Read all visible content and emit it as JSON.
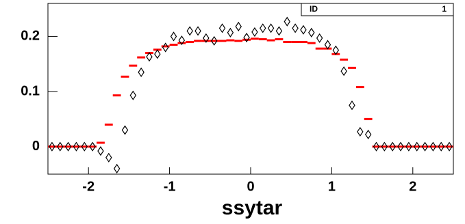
{
  "chart_data": {
    "type": "scatter",
    "xlabel": "ssytar",
    "stats_label": "ID",
    "stats_value": "1",
    "xlim": [
      -2.5,
      2.5
    ],
    "ylim": [
      -0.05,
      0.26
    ],
    "xticks": [
      -2,
      -1,
      0,
      1,
      2
    ],
    "yticks": [
      0,
      0.1,
      0.2
    ],
    "x": [
      -2.45,
      -2.35,
      -2.25,
      -2.15,
      -2.05,
      -1.95,
      -1.85,
      -1.75,
      -1.65,
      -1.55,
      -1.45,
      -1.35,
      -1.25,
      -1.15,
      -1.05,
      -0.95,
      -0.85,
      -0.75,
      -0.65,
      -0.55,
      -0.45,
      -0.35,
      -0.25,
      -0.15,
      -0.05,
      0.05,
      0.15,
      0.25,
      0.35,
      0.45,
      0.55,
      0.65,
      0.75,
      0.85,
      0.95,
      1.05,
      1.15,
      1.25,
      1.35,
      1.45,
      1.55,
      1.65,
      1.75,
      1.85,
      1.95,
      2.05,
      2.15,
      2.25,
      2.35,
      2.45
    ],
    "series": [
      {
        "color": "#ff0000",
        "marker": "dash",
        "values": [
          0,
          0,
          0,
          0,
          0,
          0,
          0.007,
          0.04,
          0.093,
          0.127,
          0.147,
          0.162,
          0.17,
          0.176,
          0.182,
          0.185,
          0.188,
          0.19,
          0.192,
          0.192,
          0.192,
          0.192,
          0.193,
          0.192,
          0.194,
          0.196,
          0.195,
          0.193,
          0.195,
          0.19,
          0.19,
          0.19,
          0.188,
          0.178,
          0.178,
          0.168,
          0.158,
          0.143,
          0.108,
          0.05,
          0,
          0,
          0,
          0,
          0,
          0,
          0,
          0,
          0,
          0
        ]
      },
      {
        "color": "#000000",
        "marker": "diamond",
        "values": [
          0,
          0,
          0,
          0,
          0,
          0,
          -0.008,
          -0.02,
          -0.04,
          0.03,
          0.093,
          0.135,
          0.163,
          0.168,
          0.18,
          0.2,
          0.193,
          0.21,
          0.21,
          0.197,
          0.192,
          0.215,
          0.207,
          0.218,
          0.198,
          0.208,
          0.215,
          0.215,
          0.21,
          0.227,
          0.215,
          0.212,
          0.207,
          0.197,
          0.185,
          0.175,
          0.137,
          0.075,
          0.027,
          0.022,
          0,
          0,
          0,
          0,
          0,
          0,
          0,
          0,
          0,
          0
        ]
      }
    ]
  }
}
